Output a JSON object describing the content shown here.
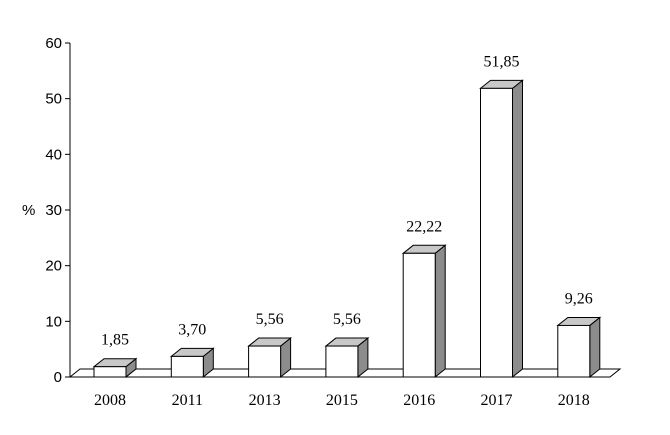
{
  "chart_data": {
    "type": "bar",
    "title": "",
    "xlabel": "",
    "ylabel": "%",
    "ylim": [
      0,
      60
    ],
    "y_ticks": [
      "0",
      "10",
      "20",
      "30",
      "40",
      "50",
      "60"
    ],
    "categories": [
      "2008",
      "2011",
      "2013",
      "2015",
      "2016",
      "2017",
      "2018"
    ],
    "values": [
      1.85,
      3.7,
      5.56,
      5.56,
      22.22,
      51.85,
      9.26
    ],
    "value_labels": [
      "1,85",
      "3,70",
      "5,56",
      "5,56",
      "22,22",
      "51,85",
      "9,26"
    ],
    "style": "3d-bars",
    "grid": false,
    "colors": {
      "bar_front": "#ffffff",
      "bar_top": "#c8c8c8",
      "bar_side": "#8c8c8c",
      "floor": "#ffffff",
      "stroke": "#000000"
    }
  }
}
